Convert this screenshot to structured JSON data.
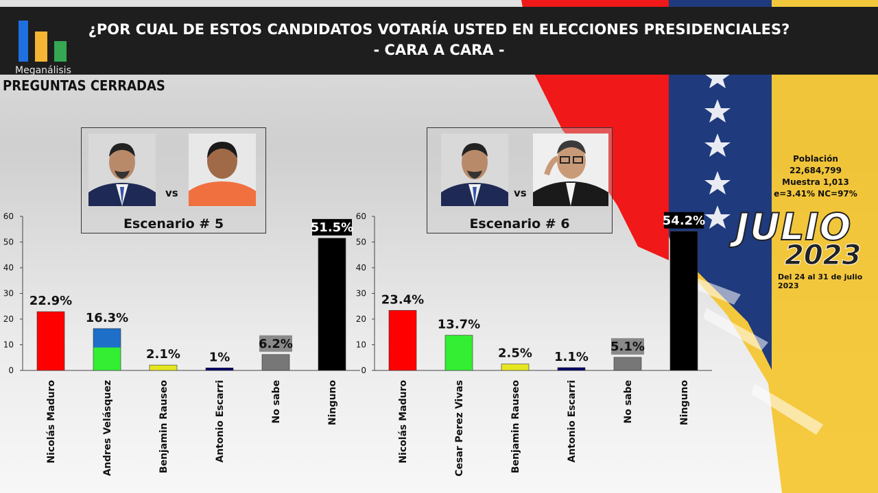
{
  "header": {
    "logo_text": "Meganálisis",
    "title_line1": "¿POR CUAL DE ESTOS CANDIDATOS VOTARÍA USTED EN ELECCIONES PRESIDENCIALES?",
    "title_line2": "- CARA A CARA -"
  },
  "subtitle": "PREGUNTAS  CERRADAS",
  "scenarios": [
    {
      "label": "Escenario # 5",
      "vs": "vs"
    },
    {
      "label": "Escenario # 6",
      "vs": "vs"
    }
  ],
  "info": {
    "poblacion_label": "Población",
    "poblacion_value": "22,684,799",
    "muestra": "Muestra 1,013",
    "error": "e=3.41%  NC=97%"
  },
  "badge": {
    "month": "JULIO",
    "year": "2023",
    "period": "Del 24 al 31 de julio 2023"
  },
  "colors": {
    "red": "#ff0000",
    "green": "#33ee33",
    "blue": "#1e6fc8",
    "yellow": "#e6e620",
    "navy": "#000066",
    "gray": "#777777",
    "black": "#000000"
  },
  "chart_data": [
    {
      "type": "bar",
      "categories": [
        "Nicolás Maduro",
        "Andres Velásquez",
        "Benjamin Rauseo",
        "Antonio Escarri",
        "No sabe",
        "Ninguno"
      ],
      "values": [
        22.9,
        16.3,
        2.1,
        1,
        6.2,
        51.5
      ],
      "data_labels": [
        "22.9%",
        "16.3%",
        "2.1%",
        "1%",
        "6.2%",
        "51.5%"
      ],
      "bar_colors": [
        "#ff0000",
        "two-tone-blue-green",
        "#e6e620",
        "#000066",
        "#777777",
        "#000000"
      ],
      "ylim": [
        0,
        60
      ],
      "yticks": [
        0,
        10,
        20,
        30,
        40,
        50,
        60
      ],
      "grid": false
    },
    {
      "type": "bar",
      "categories": [
        "Nicolás Maduro",
        "Cesar Perez Vivas",
        "Benjamin Rauseo",
        "Antonio Escarri",
        "No sabe",
        "Ninguno"
      ],
      "values": [
        23.4,
        13.7,
        2.5,
        1.1,
        5.1,
        54.2
      ],
      "data_labels": [
        "23.4%",
        "13.7%",
        "2.5%",
        "1.1%",
        "5.1%",
        "54.2%"
      ],
      "bar_colors": [
        "#ff0000",
        "#33ee33",
        "#e6e620",
        "#000066",
        "#777777",
        "#000000"
      ],
      "ylim": [
        0,
        60
      ],
      "yticks": [
        0,
        10,
        20,
        30,
        40,
        50,
        60
      ],
      "grid": false
    }
  ]
}
